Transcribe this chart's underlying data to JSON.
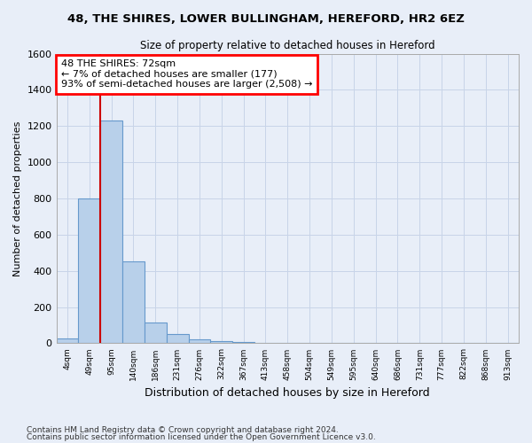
{
  "title": "48, THE SHIRES, LOWER BULLINGHAM, HEREFORD, HR2 6EZ",
  "subtitle": "Size of property relative to detached houses in Hereford",
  "xlabel": "Distribution of detached houses by size in Hereford",
  "ylabel": "Number of detached properties",
  "footnote1": "Contains HM Land Registry data © Crown copyright and database right 2024.",
  "footnote2": "Contains public sector information licensed under the Open Government Licence v3.0.",
  "bar_categories": [
    "4sqm",
    "49sqm",
    "95sqm",
    "140sqm",
    "186sqm",
    "231sqm",
    "276sqm",
    "322sqm",
    "367sqm",
    "413sqm",
    "458sqm",
    "504sqm",
    "549sqm",
    "595sqm",
    "640sqm",
    "686sqm",
    "731sqm",
    "777sqm",
    "822sqm",
    "868sqm",
    "913sqm"
  ],
  "bar_values": [
    25,
    800,
    1230,
    450,
    115,
    50,
    20,
    10,
    8,
    0,
    0,
    0,
    0,
    0,
    0,
    0,
    0,
    0,
    0,
    0,
    0
  ],
  "bar_color": "#b8d0ea",
  "bar_edge_color": "#6699cc",
  "ylim": [
    0,
    1600
  ],
  "yticks": [
    0,
    200,
    400,
    600,
    800,
    1000,
    1200,
    1400,
    1600
  ],
  "vline_pos": 1.5,
  "annotation_line1": "48 THE SHIRES: 72sqm",
  "annotation_line2": "← 7% of detached houses are smaller (177)",
  "annotation_line3": "93% of semi-detached houses are larger (2,508) →",
  "vline_color": "#cc0000",
  "grid_color": "#c8d4e8",
  "background_color": "#e8eef8",
  "ax_background_color": "#e8eef8"
}
